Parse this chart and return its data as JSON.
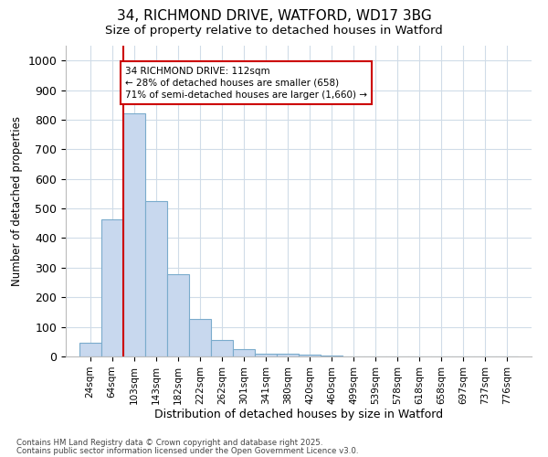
{
  "title1": "34, RICHMOND DRIVE, WATFORD, WD17 3BG",
  "title2": "Size of property relative to detached houses in Watford",
  "xlabel": "Distribution of detached houses by size in Watford",
  "ylabel": "Number of detached properties",
  "annotation_line1": "34 RICHMOND DRIVE: 112sqm",
  "annotation_line2": "← 28% of detached houses are smaller (658)",
  "annotation_line3": "71% of semi-detached houses are larger (1,660) →",
  "footer1": "Contains HM Land Registry data © Crown copyright and database right 2025.",
  "footer2": "Contains public sector information licensed under the Open Government Licence v3.0.",
  "bar_left_edges": [
    24,
    64,
    103,
    143,
    182,
    222,
    262,
    301,
    341,
    380,
    420,
    460,
    499,
    539,
    578,
    618,
    658,
    697,
    737,
    776
  ],
  "bar_widths": [
    40,
    39,
    40,
    39,
    40,
    40,
    39,
    40,
    39,
    40,
    40,
    39,
    40,
    39,
    40,
    40,
    39,
    40,
    39,
    40
  ],
  "bar_heights": [
    46,
    462,
    820,
    524,
    278,
    127,
    55,
    25,
    10,
    10,
    5,
    2,
    1,
    0,
    0,
    0,
    0,
    0,
    0,
    0
  ],
  "bar_color": "#c8d8ee",
  "bar_edge_color": "#7aabcc",
  "red_line_x": 103,
  "ylim": [
    0,
    1050
  ],
  "yticks": [
    0,
    100,
    200,
    300,
    400,
    500,
    600,
    700,
    800,
    900,
    1000
  ],
  "bg_color": "#ffffff",
  "plot_bg_color": "#ffffff",
  "grid_color": "#d0dce8",
  "red_color": "#cc0000",
  "annotation_font_size": 7.5,
  "tick_label_font_size": 7.5,
  "title_font_size": 11,
  "subtitle_font_size": 9.5,
  "ylabel_font_size": 8.5,
  "xlabel_font_size": 9
}
